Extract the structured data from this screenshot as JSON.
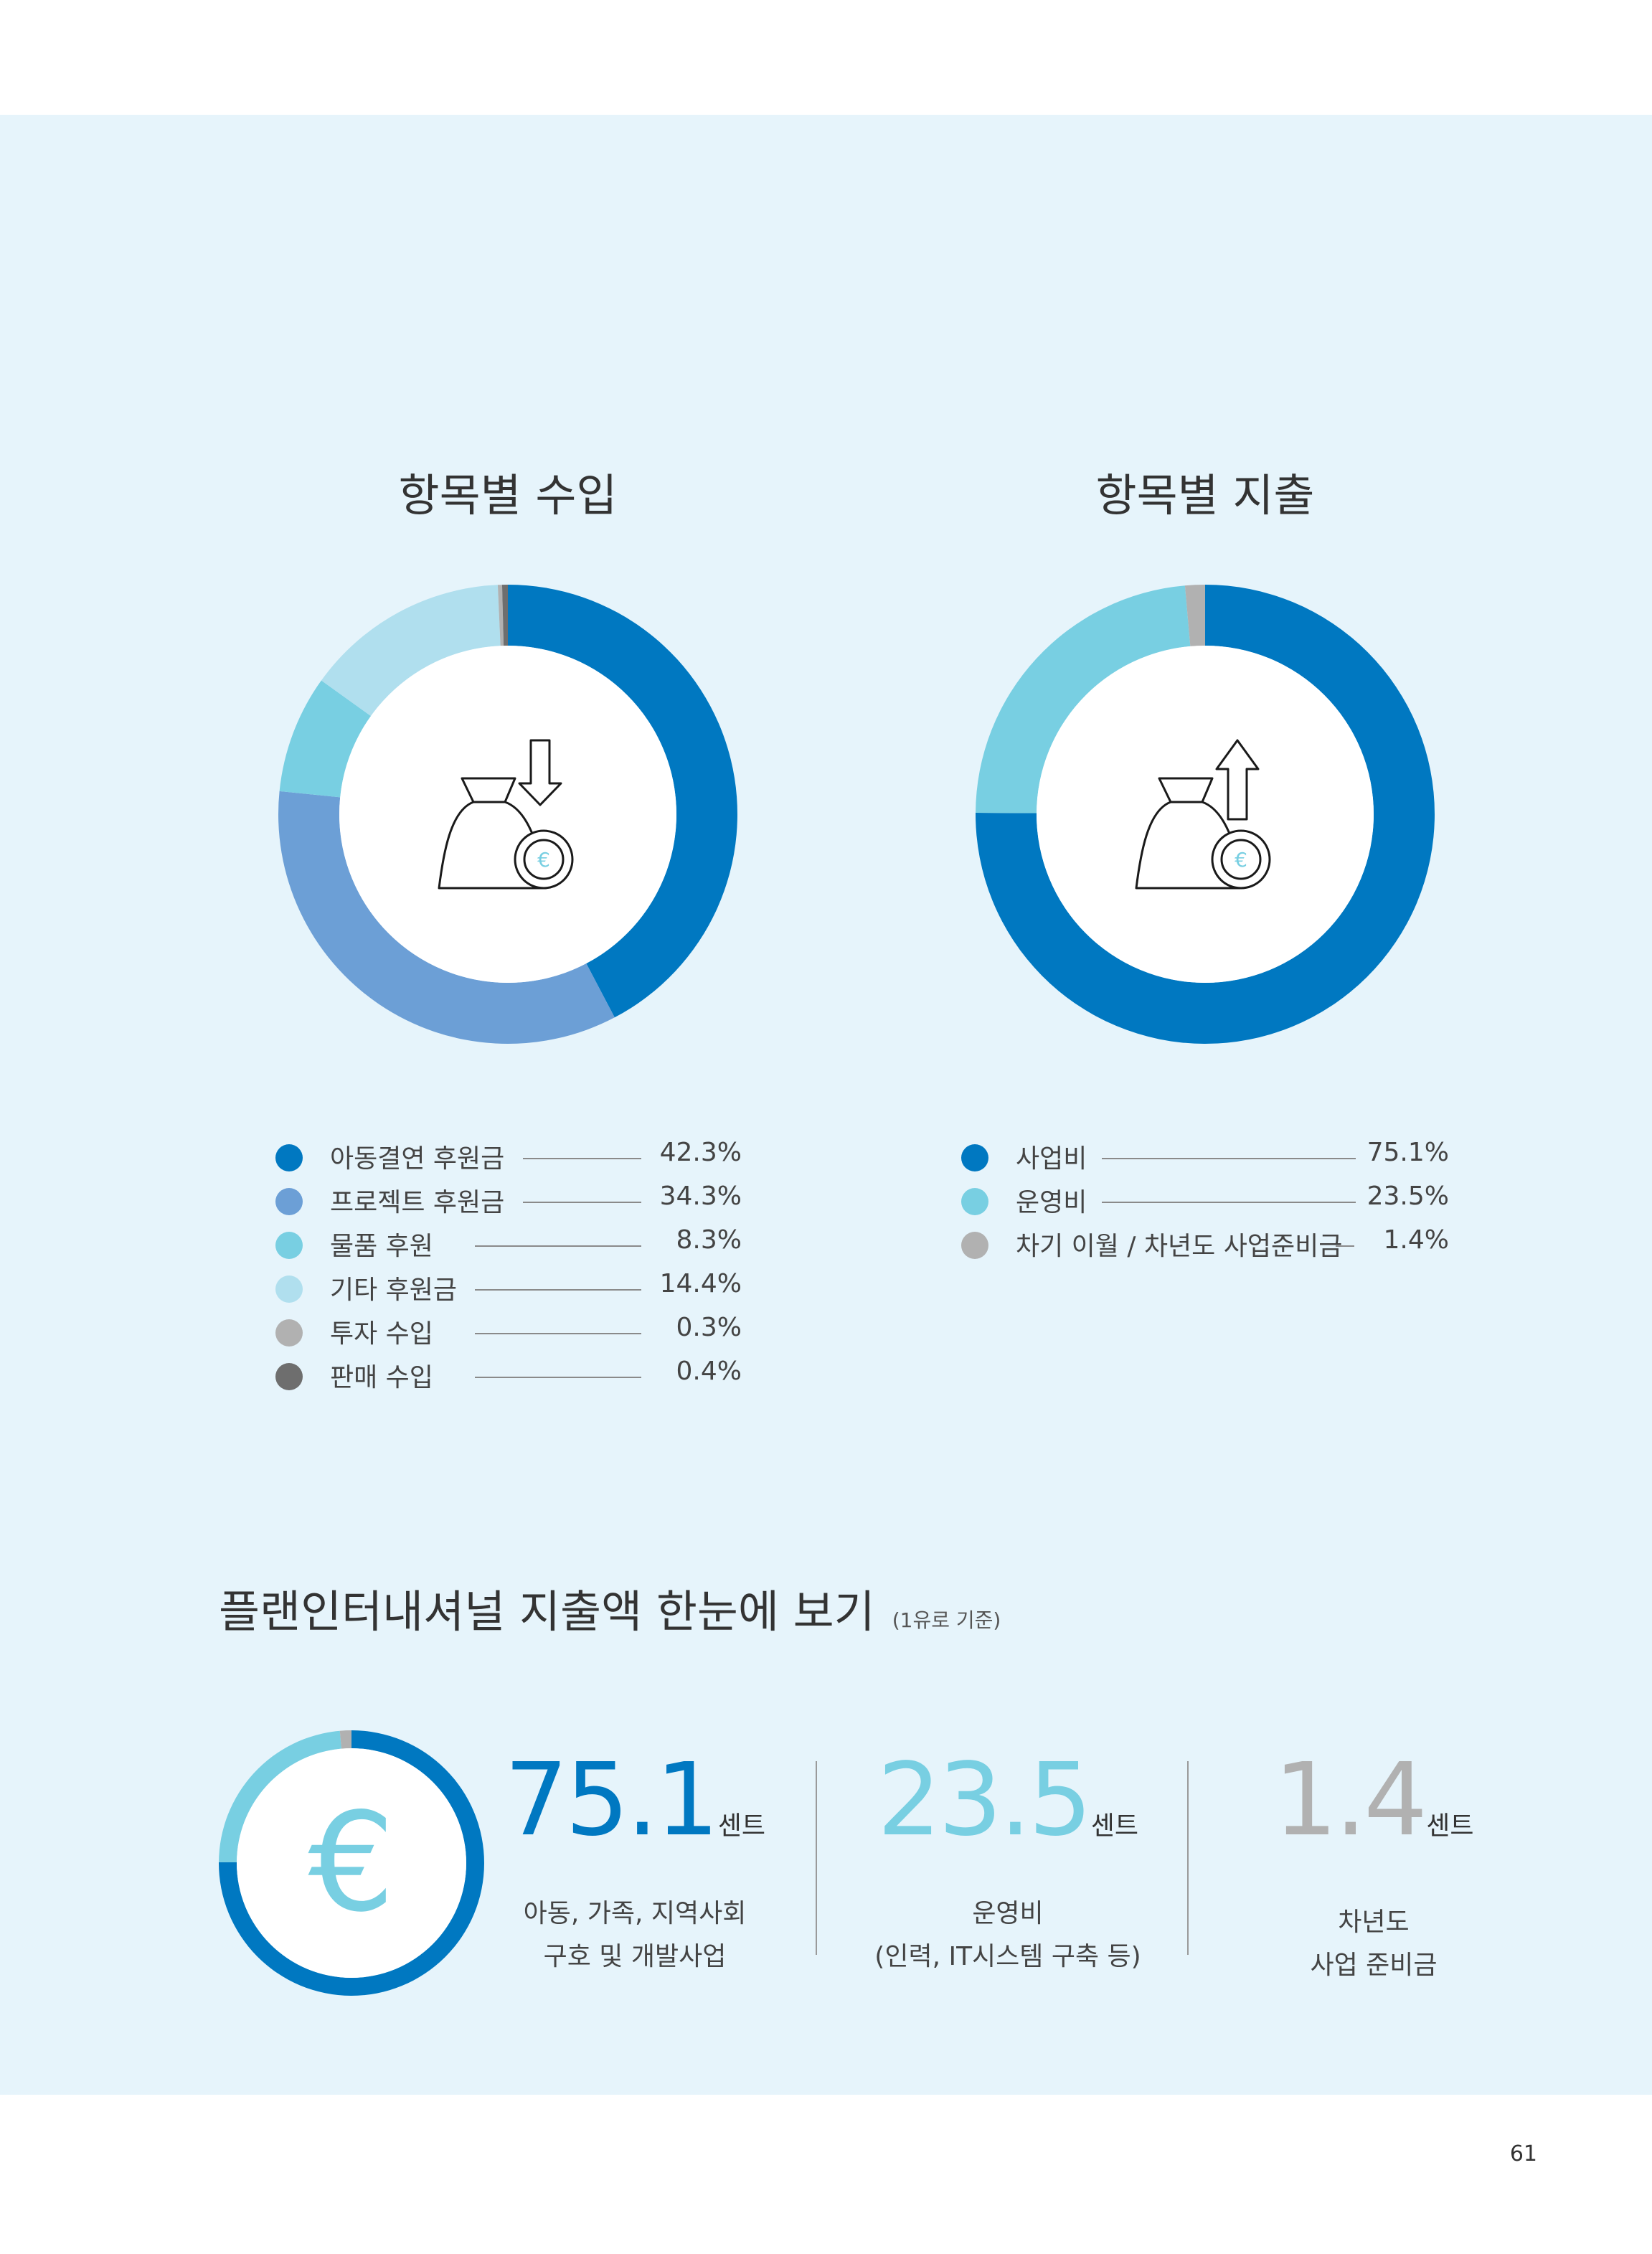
{
  "page_number": "61",
  "colors": {
    "panel_bg": "#e6f4fb",
    "dark_blue": "#0078c1",
    "mid_blue": "#6c9fd6",
    "cyan": "#78cfe2",
    "light_blue": "#b0dfee",
    "gray": "#b1b1b1",
    "dark_gray": "#6e6e6e"
  },
  "chart_data": [
    {
      "type": "pie",
      "subtype": "donut",
      "title": "항목별 수입",
      "center_icon": "money-bag-arrow-down-euro-icon",
      "categories": [
        "아동결연 후원금",
        "프로젝트 후원금",
        "물품 후원",
        "기타 후원금",
        "투자 수입",
        "판매 수입"
      ],
      "values": [
        42.3,
        34.3,
        8.3,
        14.4,
        0.3,
        0.4
      ],
      "labels": [
        "42.3%",
        "34.3%",
        "8.3%",
        "14.4%",
        "0.3%",
        "0.4%"
      ],
      "colors": [
        "#0078c1",
        "#6c9fd6",
        "#78cfe2",
        "#b0dfee",
        "#b1b1b1",
        "#6e6e6e"
      ],
      "legend_position": "bottom"
    },
    {
      "type": "pie",
      "subtype": "donut",
      "title": "항목별 지출",
      "center_icon": "money-bag-arrow-up-euro-icon",
      "categories": [
        "사업비",
        "운영비",
        "차기 이월 / 차년도 사업준비금"
      ],
      "values": [
        75.1,
        23.5,
        1.4
      ],
      "labels": [
        "75.1%",
        "23.5%",
        "1.4%"
      ],
      "colors": [
        "#0078c1",
        "#78cfe2",
        "#b1b1b1"
      ],
      "legend_position": "bottom"
    },
    {
      "type": "pie",
      "subtype": "donut",
      "title": "플랜인터내셔널 지출액 한눈에 보기",
      "note": "(1유로 기준)",
      "center_icon": "euro-icon",
      "categories": [
        "아동, 가족, 지역사회 구호 및 개발사업",
        "운영비 (인력, IT시스템 구축 등)",
        "차년도 사업 준비금"
      ],
      "values": [
        75.1,
        23.5,
        1.4
      ],
      "colors": [
        "#0078c1",
        "#78cfe2",
        "#b1b1b1"
      ]
    }
  ],
  "summary": {
    "title": "플랜인터내셔널 지출액 한눈에 보기",
    "note": "(1유로 기준)",
    "stats": [
      {
        "value": "75.1",
        "unit": "센트",
        "line1": "아동, 가족, 지역사회",
        "line2": "구호 및 개발사업",
        "color": "#0078c1"
      },
      {
        "value": "23.5",
        "unit": "센트",
        "line1": "운영비",
        "line2": "(인력, IT시스템 구축 등)",
        "color": "#78cfe2"
      },
      {
        "value": "1.4",
        "unit": "센트",
        "line1": "차년도",
        "line2": "사업 준비금",
        "color": "#b1b1b1"
      }
    ]
  }
}
